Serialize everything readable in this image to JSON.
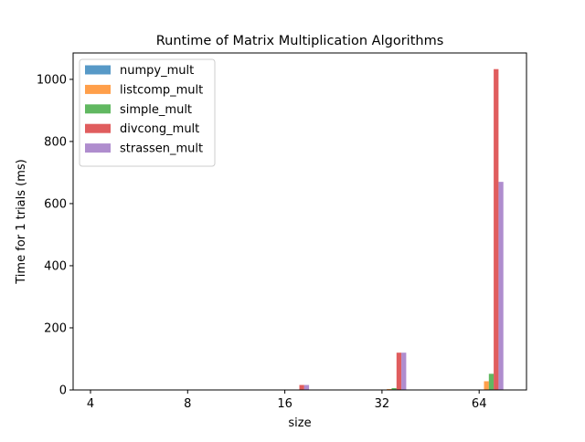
{
  "chart_data": {
    "type": "bar",
    "title": "Runtime of Matrix Multiplication Algorithms",
    "xlabel": "size",
    "ylabel": "Time for 1 trials (ms)",
    "categories": [
      "4",
      "8",
      "16",
      "32",
      "64"
    ],
    "ylim": [
      0,
      1085
    ],
    "yticks": [
      0,
      200,
      400,
      600,
      800,
      1000
    ],
    "grid": false,
    "legend_position": "top-left",
    "bar_alpha": 0.75,
    "series": [
      {
        "name": "numpy_mult",
        "color": "#1f77b4",
        "values": [
          0,
          0,
          0,
          0.5,
          1
        ]
      },
      {
        "name": "listcomp_mult",
        "color": "#ff7f0e",
        "values": [
          0,
          0,
          0.3,
          3,
          28
        ]
      },
      {
        "name": "simple_mult",
        "color": "#2ca02c",
        "values": [
          0,
          0,
          0.8,
          6,
          52
        ]
      },
      {
        "name": "divcong_mult",
        "color": "#d62728",
        "values": [
          0,
          0.2,
          16,
          120,
          1033
        ]
      },
      {
        "name": "strassen_mult",
        "color": "#9467bd",
        "values": [
          0,
          0.2,
          16,
          120,
          670
        ]
      }
    ]
  }
}
